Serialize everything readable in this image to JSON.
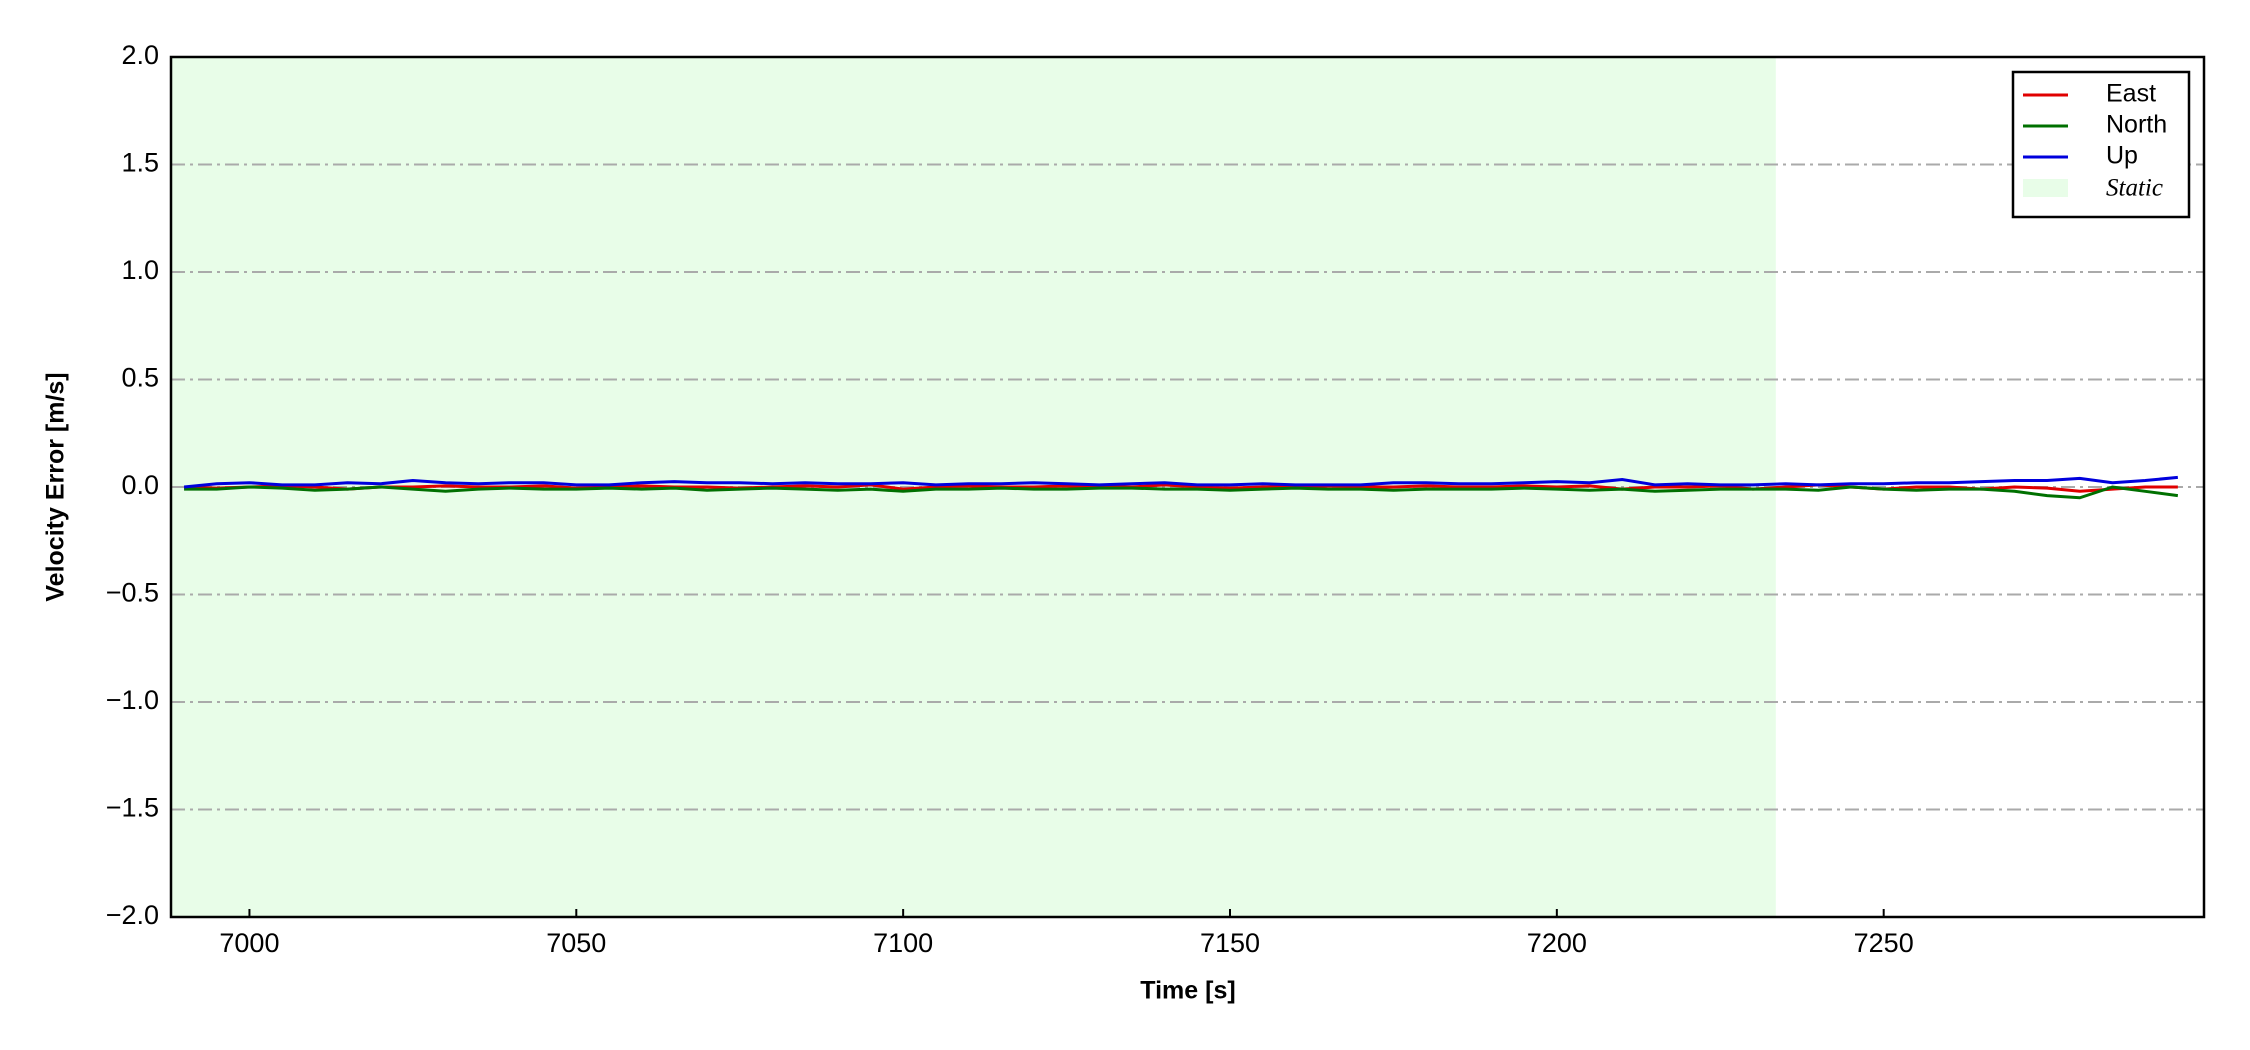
{
  "chart_data": {
    "type": "line",
    "x_label": "Time [s]",
    "y_label": "Velocity Error [m/s]",
    "x": [
      6990,
      6995,
      7000,
      7005,
      7010,
      7015,
      7020,
      7025,
      7030,
      7035,
      7040,
      7045,
      7050,
      7055,
      7060,
      7065,
      7070,
      7075,
      7080,
      7085,
      7090,
      7095,
      7100,
      7105,
      7110,
      7115,
      7120,
      7125,
      7130,
      7135,
      7140,
      7145,
      7150,
      7155,
      7160,
      7165,
      7170,
      7175,
      7180,
      7185,
      7190,
      7195,
      7200,
      7205,
      7210,
      7215,
      7220,
      7225,
      7230,
      7235,
      7240,
      7245,
      7250,
      7255,
      7260,
      7265,
      7270,
      7275,
      7280,
      7285,
      7290,
      7295
    ],
    "series": [
      {
        "name": "East",
        "color": "#e00000",
        "values": [
          0,
          -0.005,
          0,
          0.005,
          0,
          -0.01,
          0,
          0,
          0.005,
          0,
          0,
          0.005,
          -0.005,
          0,
          0.005,
          0,
          0,
          -0.005,
          0,
          0.005,
          0,
          0.01,
          -0.01,
          0,
          0.005,
          0,
          0,
          0.005,
          0,
          0,
          0.01,
          0,
          -0.005,
          0,
          0,
          0.005,
          0,
          0,
          0.005,
          0,
          0,
          0.005,
          0,
          0.005,
          -0.01,
          0,
          0,
          0.005,
          -0.01,
          0,
          0.01,
          0,
          -0.01,
          0,
          0,
          -0.01,
          0,
          -0.005,
          -0.02,
          -0.01,
          0,
          0
        ]
      },
      {
        "name": "North",
        "color": "#007000",
        "values": [
          -0.01,
          -0.01,
          0,
          -0.005,
          -0.015,
          -0.01,
          0,
          -0.01,
          -0.02,
          -0.01,
          -0.005,
          -0.01,
          -0.01,
          -0.005,
          -0.01,
          -0.005,
          -0.015,
          -0.01,
          -0.005,
          -0.01,
          -0.015,
          -0.01,
          -0.02,
          -0.01,
          -0.01,
          -0.005,
          -0.01,
          -0.01,
          -0.005,
          -0.005,
          -0.01,
          -0.01,
          -0.015,
          -0.01,
          -0.005,
          -0.01,
          -0.01,
          -0.015,
          -0.01,
          -0.01,
          -0.01,
          -0.005,
          -0.01,
          -0.015,
          -0.01,
          -0.02,
          -0.015,
          -0.01,
          -0.01,
          -0.01,
          -0.015,
          0,
          -0.01,
          -0.015,
          -0.01,
          -0.01,
          -0.02,
          -0.04,
          -0.05,
          0,
          -0.02,
          -0.04
        ]
      },
      {
        "name": "Up",
        "color": "#0000dd",
        "values": [
          0,
          0.015,
          0.02,
          0.01,
          0.01,
          0.02,
          0.015,
          0.03,
          0.02,
          0.015,
          0.02,
          0.02,
          0.01,
          0.01,
          0.02,
          0.025,
          0.02,
          0.02,
          0.015,
          0.02,
          0.015,
          0.015,
          0.02,
          0.01,
          0.015,
          0.015,
          0.02,
          0.015,
          0.01,
          0.015,
          0.02,
          0.01,
          0.01,
          0.015,
          0.01,
          0.01,
          0.01,
          0.02,
          0.02,
          0.015,
          0.015,
          0.02,
          0.025,
          0.02,
          0.035,
          0.01,
          0.015,
          0.01,
          0.01,
          0.015,
          0.01,
          0.015,
          0.015,
          0.02,
          0.02,
          0.025,
          0.03,
          0.03,
          0.04,
          0.02,
          0.03,
          0.045
        ]
      }
    ],
    "static_span": {
      "label": "Static",
      "x": [
        6988,
        7233.5
      ],
      "color": "#e8fde8"
    },
    "xlim": [
      6988,
      7299
    ],
    "xticks": [
      7000,
      7050,
      7100,
      7150,
      7200,
      7250
    ],
    "ylim": [
      -2,
      2
    ],
    "yticks": [
      {
        "value": -2,
        "label": "−2.0"
      },
      {
        "value": -1.5,
        "label": "−1.5"
      },
      {
        "value": -1,
        "label": "−1.0"
      },
      {
        "value": -0.5,
        "label": "−0.5"
      },
      {
        "value": 0,
        "label": "0.0"
      },
      {
        "value": 0.5,
        "label": "0.5"
      },
      {
        "value": 1,
        "label": "1.0"
      },
      {
        "value": 1.5,
        "label": "1.5"
      },
      {
        "value": 2,
        "label": "2.0"
      }
    ],
    "grid": true,
    "legend": "upper right"
  }
}
